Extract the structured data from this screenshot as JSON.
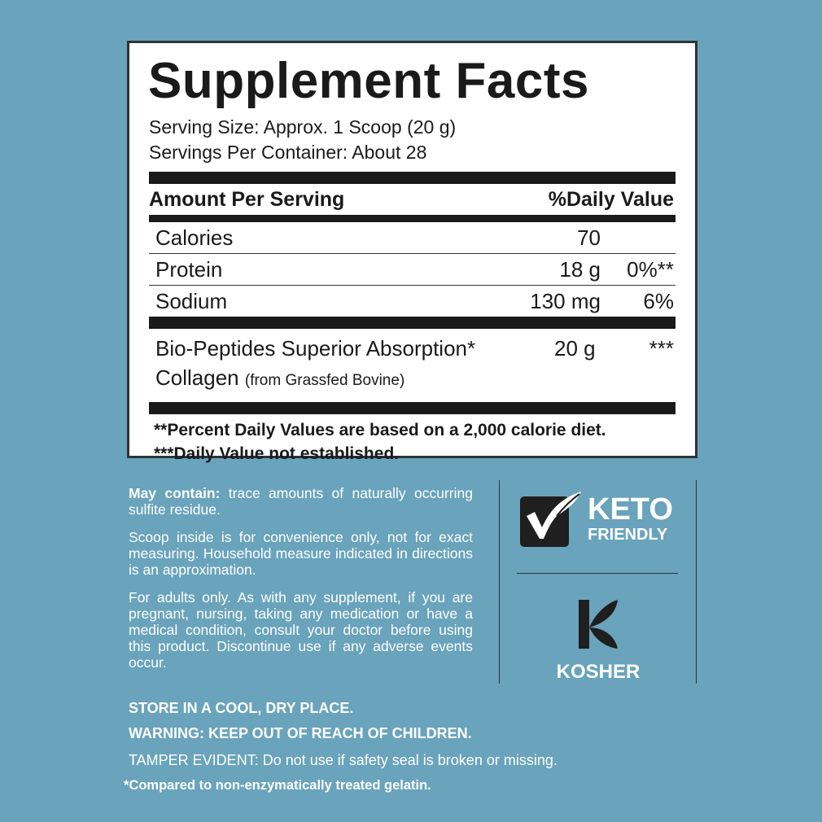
{
  "label": {
    "title": "Supplement Facts",
    "serving_size": "Serving Size: Approx. 1 Scoop (20 g)",
    "servings_per_container": "Servings Per Container: About 28",
    "header_amount": "Amount Per Serving",
    "header_dv": "%Daily Value",
    "rows": [
      {
        "name": "Calories",
        "amount": "70",
        "dv": ""
      },
      {
        "name": "Protein",
        "amount": "18 g",
        "dv": "0%**"
      },
      {
        "name": "Sodium",
        "amount": "130 mg",
        "dv": "6%"
      }
    ],
    "ingredient": {
      "name": "Bio-Peptides Superior Absorption* Collagen",
      "source": "(from Grassfed Bovine)",
      "amount": "20 g",
      "dv": "***"
    },
    "footnotes": [
      "**Percent Daily Values are based on a 2,000 calorie diet.",
      "***Daily Value not established."
    ]
  },
  "info": {
    "may_contain_label": "May contain:",
    "may_contain_text": " trace amounts of naturally occurring sulfite residue.",
    "scoop": "Scoop inside is for convenience only, not for exact measuring. Household measure indicated in directions is an approximation.",
    "adults": "For adults only. As with any supplement, if you are pregnant, nursing, taking any medication or have a medical condition, consult your doctor before using this product. Discontinue use if any adverse events occur."
  },
  "badges": {
    "keto_line1": "KETO",
    "keto_line2": "FRIENDLY",
    "kosher": "KOSHER",
    "icons": [
      "keto-check-leaf-icon",
      "kosher-k-icon"
    ]
  },
  "bottom": {
    "store": "STORE IN A COOL, DRY PLACE.",
    "warning": "WARNING: KEEP OUT OF REACH OF CHILDREN.",
    "tamper": "TAMPER EVIDENT: Do not use if safety seal is broken or missing.",
    "compared": "*Compared to non-enzymatically treated gelatin."
  },
  "colors": {
    "background": "#69a3bc",
    "label_bg": "#ffffff",
    "text_dark": "#1a1a1a"
  }
}
